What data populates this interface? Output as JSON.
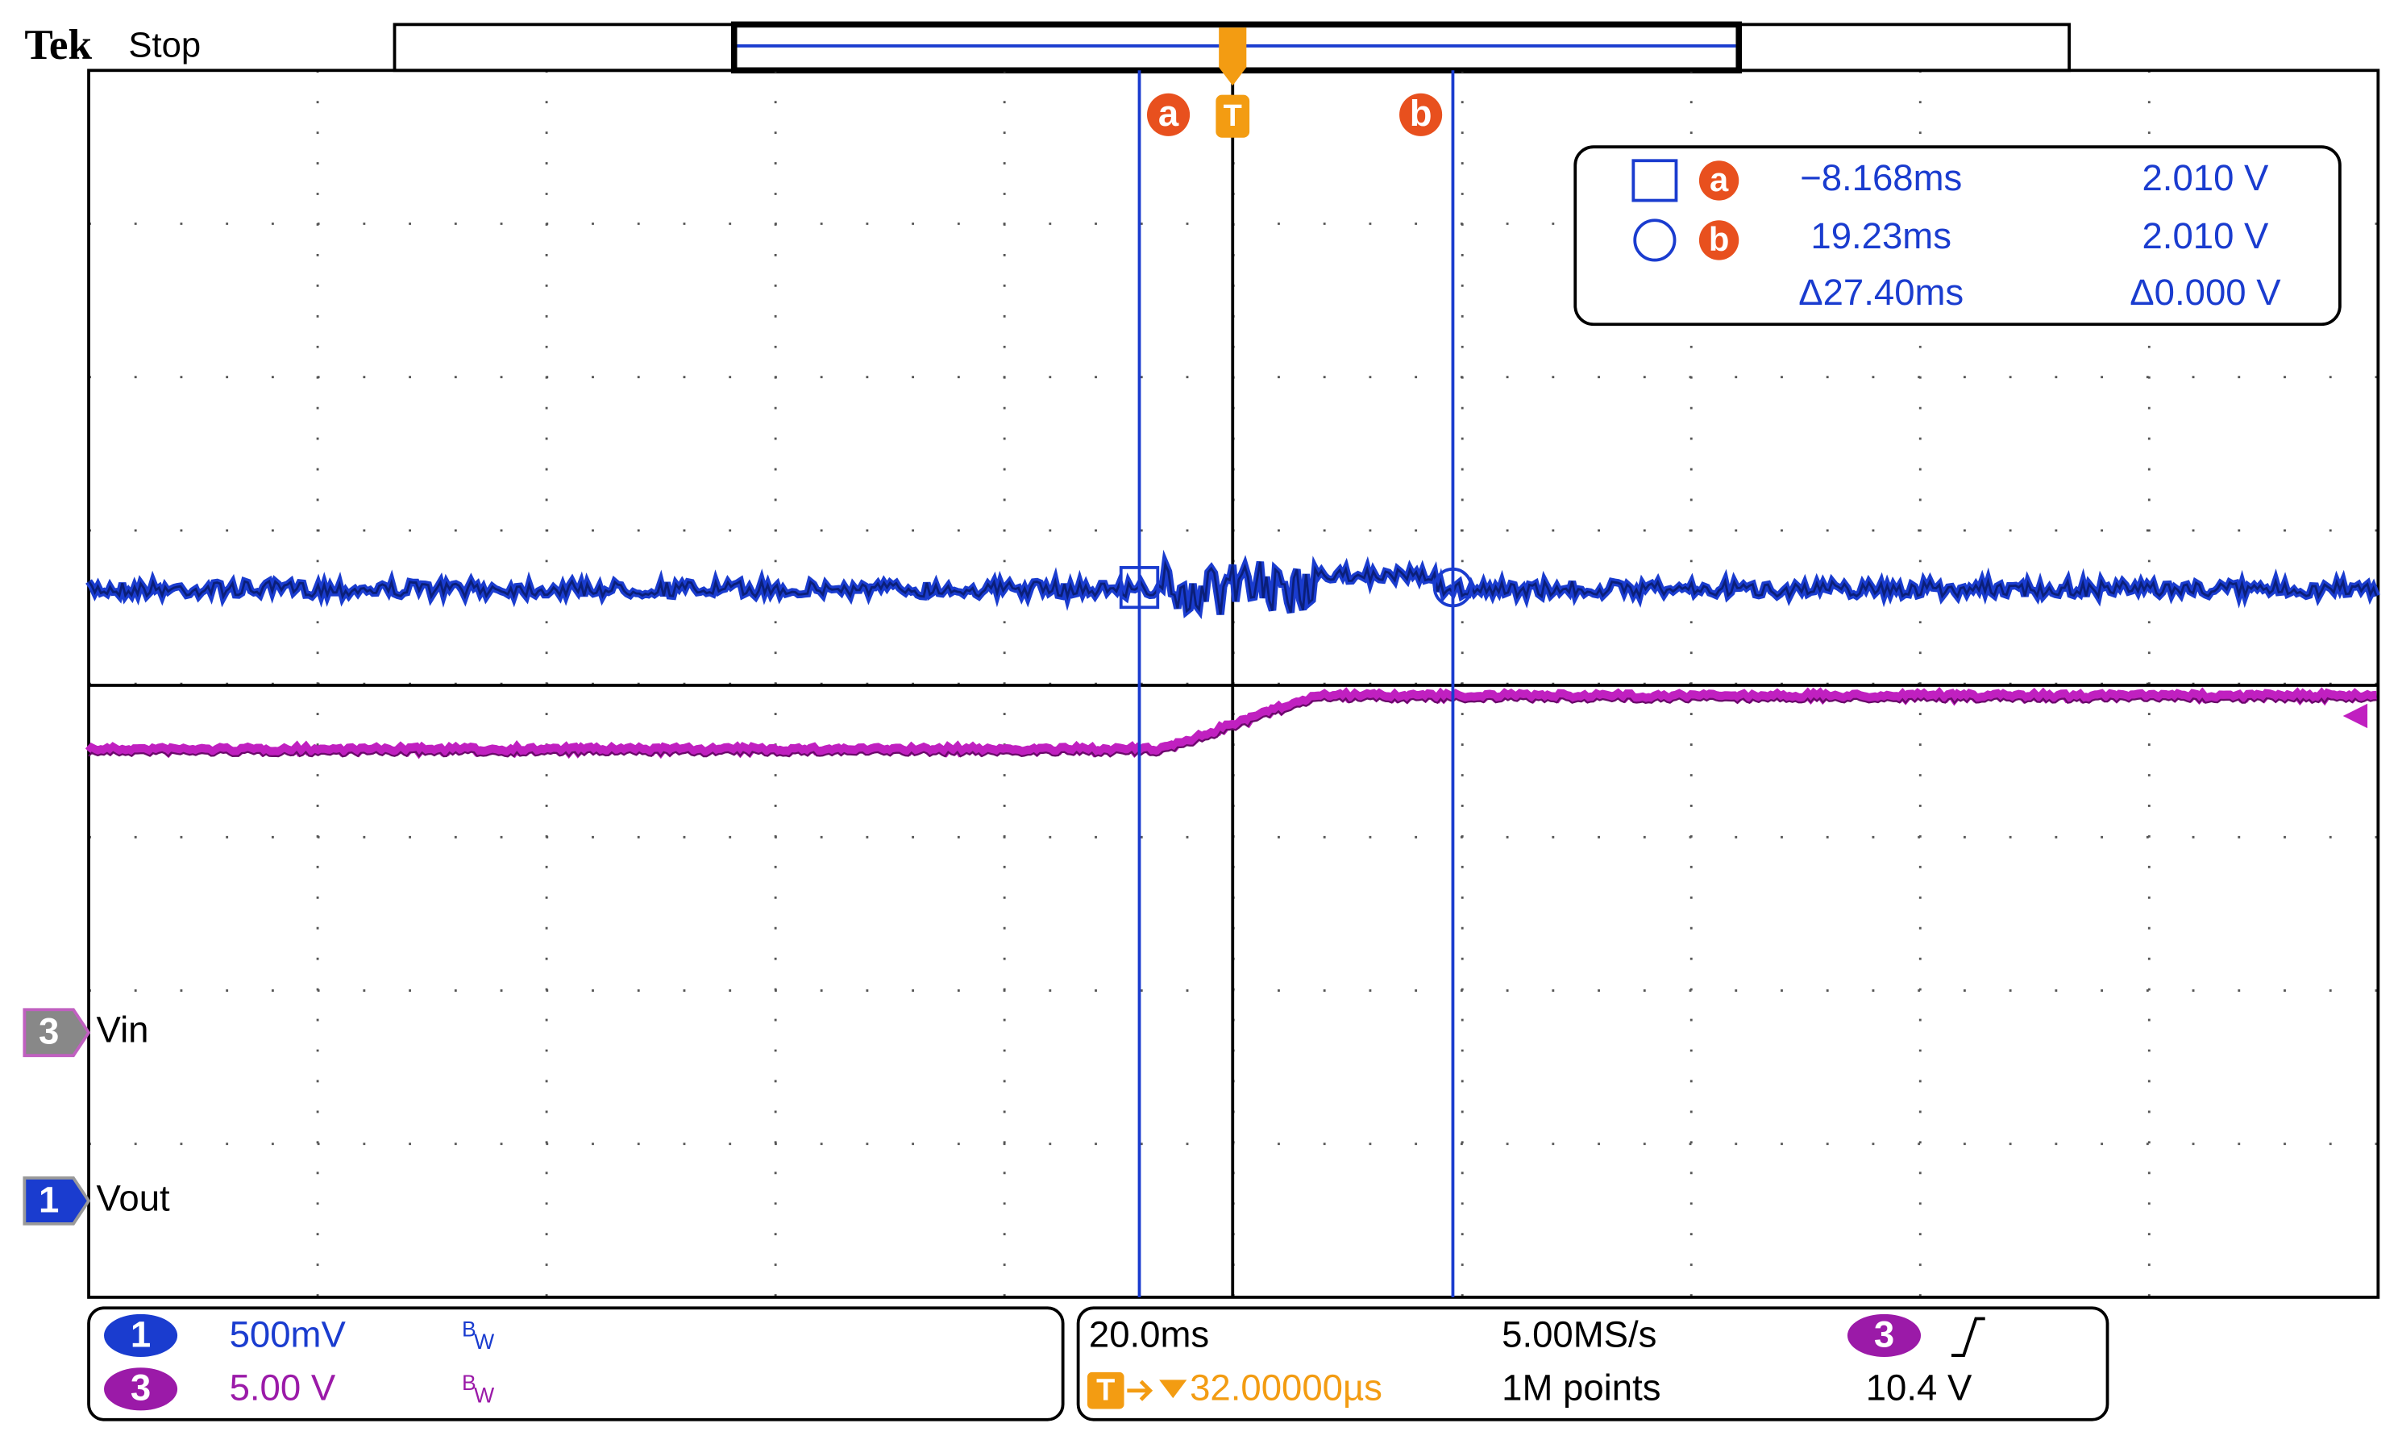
{
  "header": {
    "brand": "Tek",
    "status": "Stop"
  },
  "cursor_labels": {
    "a": "a",
    "b": "b",
    "trigger": "T"
  },
  "readout": {
    "a_label": "a",
    "a_time": "−8.168ms",
    "a_volt": "2.010 V",
    "b_label": "b",
    "b_time": "19.23ms",
    "b_volt": "2.010 V",
    "delta_time": "Δ27.40ms",
    "delta_volt": "Δ0.000 V"
  },
  "channel_markers": [
    {
      "number": "3",
      "name": "Vin"
    },
    {
      "number": "1",
      "name": "Vout"
    }
  ],
  "vertical": [
    {
      "number": "1",
      "scale": "500mV",
      "bw": "B",
      "bw_sub": "W"
    },
    {
      "number": "3",
      "scale": "5.00 V",
      "bw": "B",
      "bw_sub": "W"
    }
  ],
  "horizontal": {
    "scale": "20.0ms",
    "sample_rate": "5.00MS/s",
    "record": "1M points",
    "trigger_icon": "T",
    "trigger_position": "32.00000µs"
  },
  "trigger": {
    "source": "3",
    "level": "10.4 V"
  }
}
